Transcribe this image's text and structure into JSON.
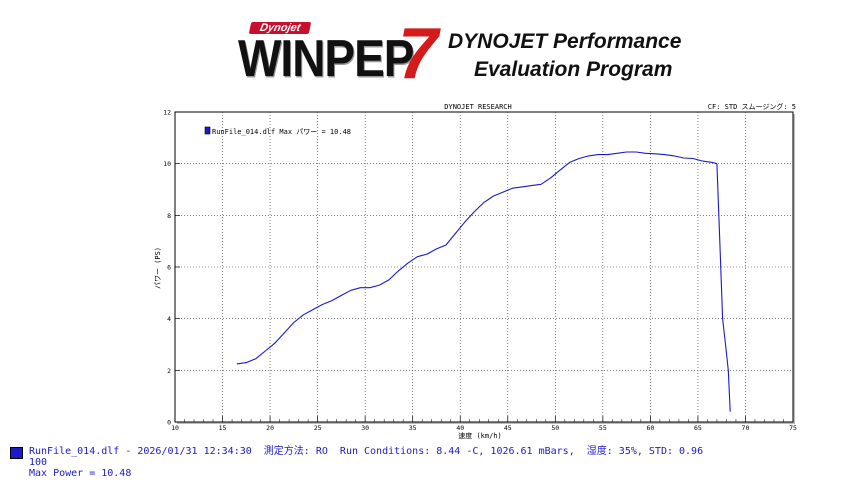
{
  "header": {
    "brand_small": "Dynojet",
    "logo_word": "WINPEP",
    "logo_number": "7",
    "tagline_line1": "DYNOJET Performance",
    "tagline_line2": "Evaluation Program"
  },
  "chart_data": {
    "type": "line",
    "title": "DYNOJET RESEARCH",
    "top_right_label": "CF: STD スムージング: 5",
    "xlabel": "速度 (km/h)",
    "ylabel": "パワー (PS)",
    "xlim": [
      10,
      75
    ],
    "ylim": [
      0,
      12
    ],
    "x_ticks": [
      10,
      15,
      20,
      25,
      30,
      35,
      40,
      45,
      50,
      55,
      60,
      65,
      70,
      75
    ],
    "y_ticks": [
      0,
      2,
      4,
      6,
      8,
      10,
      12
    ],
    "grid": true,
    "legend_position": "top-left",
    "legend": "RunFile_014.dlf Max パワー = 10.48",
    "series": [
      {
        "name": "RunFile_014.dlf",
        "color": "#1a1acc",
        "x": [
          16.5,
          17.5,
          18.5,
          19.5,
          20.5,
          21.5,
          22.5,
          23.5,
          24.5,
          25.5,
          26.5,
          27.5,
          28.5,
          29.5,
          30.5,
          31.5,
          32.5,
          33.5,
          34.5,
          35.5,
          36.5,
          37.5,
          38.5,
          39.5,
          40.5,
          41.5,
          42.5,
          43.5,
          44.5,
          45.5,
          46.5,
          47.5,
          48.5,
          49.5,
          50.5,
          51.5,
          52.5,
          53.5,
          54.5,
          55.5,
          56.5,
          57.5,
          58.5,
          59.5,
          60.5,
          61.5,
          62.5,
          63.5,
          64.5,
          65.5,
          66.5,
          67.0,
          67.3,
          67.6,
          67.9,
          68.2,
          68.4
        ],
        "y": [
          2.25,
          2.3,
          2.45,
          2.75,
          3.05,
          3.45,
          3.85,
          4.15,
          4.35,
          4.55,
          4.7,
          4.9,
          5.1,
          5.2,
          5.2,
          5.3,
          5.5,
          5.85,
          6.15,
          6.4,
          6.5,
          6.7,
          6.85,
          7.3,
          7.75,
          8.15,
          8.5,
          8.75,
          8.9,
          9.05,
          9.1,
          9.15,
          9.2,
          9.45,
          9.75,
          10.05,
          10.2,
          10.3,
          10.35,
          10.35,
          10.4,
          10.45,
          10.45,
          10.4,
          10.38,
          10.35,
          10.3,
          10.22,
          10.2,
          10.1,
          10.05,
          10.0,
          7.0,
          4.0,
          3.0,
          2.0,
          0.4
        ]
      }
    ]
  },
  "footer": {
    "line1": "RunFile_014.dlf - 2026/01/31 12:34:30  測定方法: RO  Run Conditions: 8.44 -C, 1026.61 mBars,  湿度: 35%, STD: 0.96",
    "line2": "100",
    "line3": "Max Power = 10.48"
  }
}
